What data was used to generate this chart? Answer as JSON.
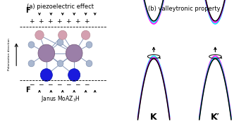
{
  "title_a": "(a) piezoelectric effect",
  "title_b": "(b) valleytronic property",
  "label_K": "K",
  "label_Kp": "K′",
  "label_F_top": "F",
  "label_F_bot": "F",
  "label_janus": "Janus MoAZ$_3$H",
  "label_polarization": "Polarization direction",
  "bg_color": "#ffffff",
  "atom_Mo_color": "#9b7fa8",
  "atom_Z_top_color": "#d4a0b0",
  "atom_Z_bot_color": "#1a1add",
  "atom_small_color": "#aab8d0",
  "bond_color": "#8899bb",
  "curve_black": "#000000",
  "curve_cyan": "#00e5ff",
  "curve_magenta": "#ff00ff"
}
